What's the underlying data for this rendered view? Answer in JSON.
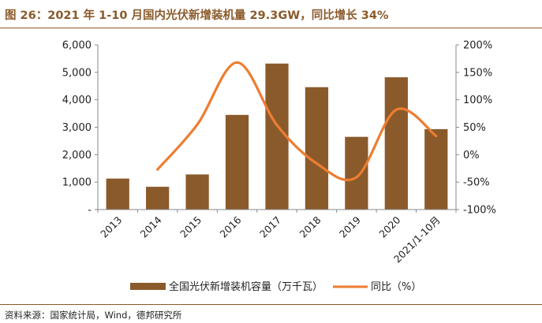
{
  "title": "图 26：2021 年 1-10 月国内光伏新增装机量 29.3GW，同比增长 34%",
  "source": "资料来源：国家统计局，Wind，德邦研究所",
  "colors": {
    "bar": "#8B5A2B",
    "line": "#ED7D31",
    "accent": "#8B5A2B"
  },
  "chart_data": {
    "type": "bar",
    "categories": [
      "2013",
      "2014",
      "2015",
      "2016",
      "2017",
      "2018",
      "2019",
      "2020",
      "2021/1-10月"
    ],
    "series": [
      {
        "name": "全国光伏新增装机容量（万千瓦）",
        "type": "bar",
        "axis": "left",
        "values": [
          1130,
          830,
          1280,
          3450,
          5320,
          4460,
          2650,
          4820,
          2930
        ]
      },
      {
        "name": "同比（%）",
        "type": "line",
        "axis": "right",
        "values": [
          null,
          -27,
          55,
          168,
          54,
          -16,
          -41,
          82,
          34
        ]
      }
    ],
    "y_left": {
      "ylim": [
        0,
        6000
      ],
      "ticks": [
        "-",
        "1,000",
        "2,000",
        "3,000",
        "4,000",
        "5,000",
        "6,000"
      ]
    },
    "y_right": {
      "ylim": [
        -100,
        200
      ],
      "ticks": [
        "-100%",
        "-50%",
        "0%",
        "50%",
        "100%",
        "150%",
        "200%"
      ]
    },
    "legend": {
      "placement": "bottom",
      "bar_label": "全国光伏新增装机容量（万千瓦）",
      "line_label": "同比（%）"
    },
    "grid": false
  }
}
